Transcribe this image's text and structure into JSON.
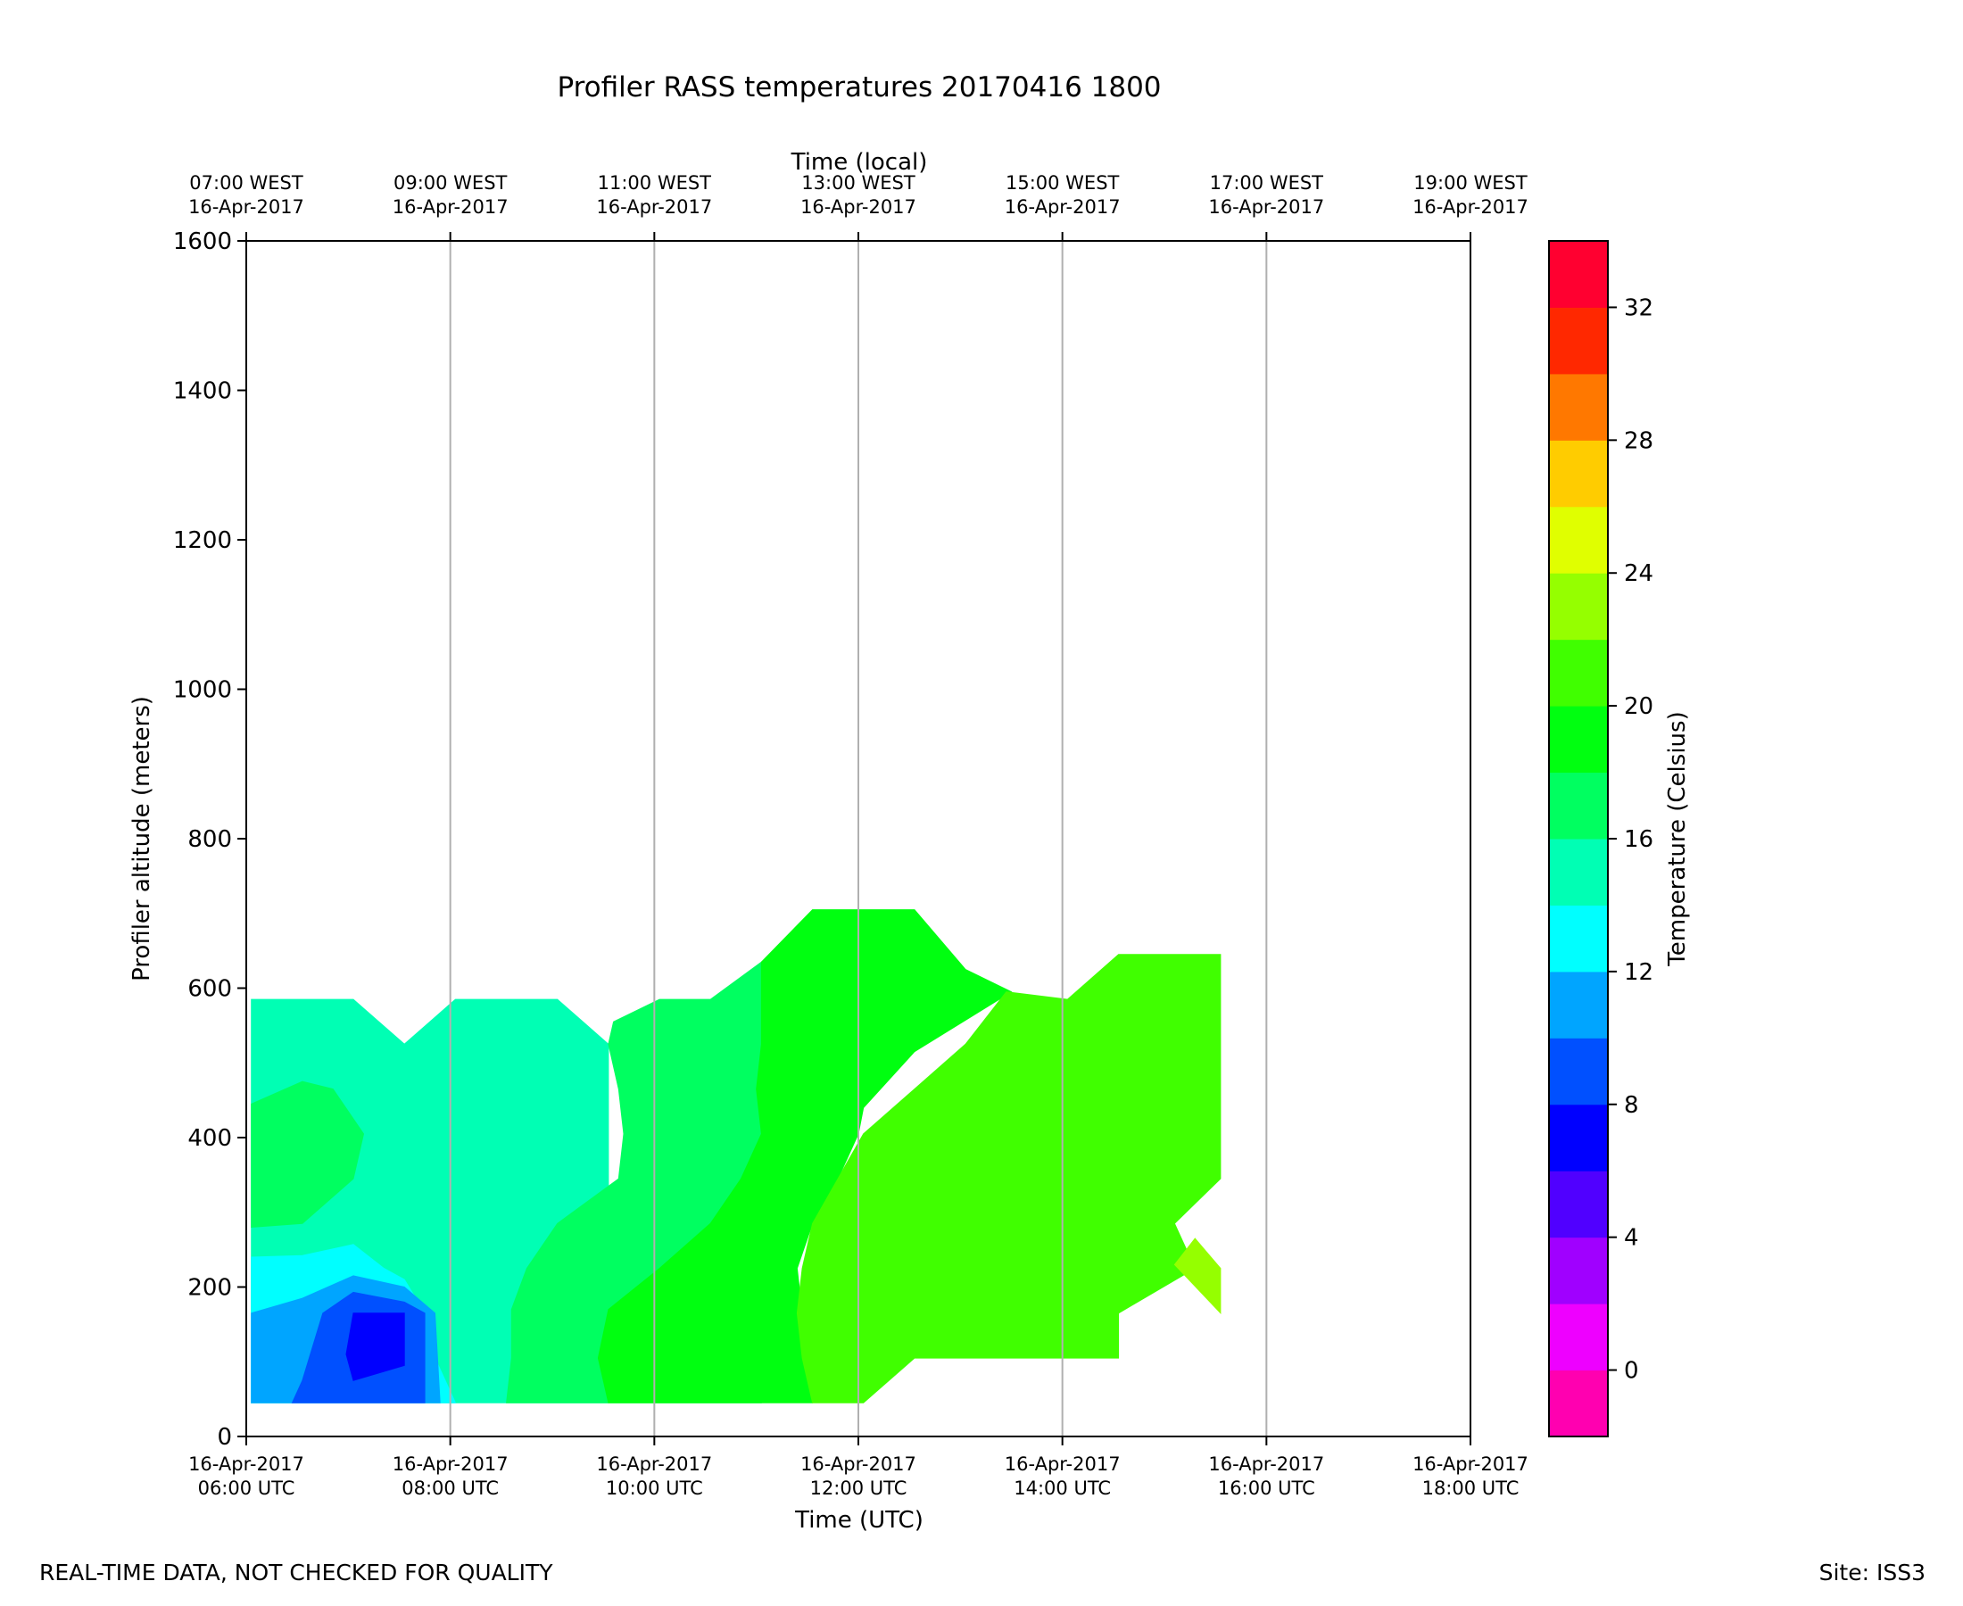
{
  "chart_data": {
    "type": "heatmap",
    "title": "Profiler RASS temperatures 20170416 1800",
    "top_axis_label": "Time (local)",
    "xlabel": "Time (UTC)",
    "ylabel": "Profiler altitude (meters)",
    "colorbar_label": "Temperature (Celsius)",
    "x_unit": "hours UTC, 16-Apr-2017",
    "xlim": [
      6,
      18
    ],
    "ylim": [
      0,
      1600
    ],
    "x_ticks": [
      6,
      8,
      10,
      12,
      14,
      16,
      18
    ],
    "x_tick_labels_bottom": [
      [
        "16-Apr-2017",
        "06:00 UTC"
      ],
      [
        "16-Apr-2017",
        "08:00 UTC"
      ],
      [
        "16-Apr-2017",
        "10:00 UTC"
      ],
      [
        "16-Apr-2017",
        "12:00 UTC"
      ],
      [
        "16-Apr-2017",
        "14:00 UTC"
      ],
      [
        "16-Apr-2017",
        "16:00 UTC"
      ],
      [
        "16-Apr-2017",
        "18:00 UTC"
      ]
    ],
    "x_tick_labels_top": [
      [
        "07:00 WEST",
        "16-Apr-2017"
      ],
      [
        "09:00 WEST",
        "16-Apr-2017"
      ],
      [
        "11:00 WEST",
        "16-Apr-2017"
      ],
      [
        "13:00 WEST",
        "16-Apr-2017"
      ],
      [
        "15:00 WEST",
        "16-Apr-2017"
      ],
      [
        "17:00 WEST",
        "16-Apr-2017"
      ],
      [
        "19:00 WEST",
        "16-Apr-2017"
      ]
    ],
    "y_ticks": [
      0,
      200,
      400,
      600,
      800,
      1000,
      1200,
      1400,
      1600
    ],
    "vertical_grid": true,
    "colorbar": {
      "min": -2,
      "max": 34,
      "step": 2,
      "ticks": [
        0,
        4,
        8,
        12,
        16,
        20,
        24,
        28,
        32
      ],
      "colors": [
        "#ff00b0",
        "#ee00ff",
        "#a000ff",
        "#5000ff",
        "#0000ff",
        "#0050ff",
        "#00a5ff",
        "#00ffff",
        "#00ffb4",
        "#00ff60",
        "#00ff10",
        "#40ff00",
        "#95ff00",
        "#e0ff00",
        "#ffcc00",
        "#ff7800",
        "#ff2800",
        "#ff0030"
      ]
    },
    "contour_regions": [
      {
        "band": "14-16",
        "points": [
          [
            6.05,
            45
          ],
          [
            6.05,
            585
          ],
          [
            7.05,
            585
          ],
          [
            7.55,
            525
          ],
          [
            8.05,
            585
          ],
          [
            9.05,
            585
          ],
          [
            9.55,
            525
          ],
          [
            9.55,
            45
          ]
        ]
      },
      {
        "band": "16-18",
        "points": [
          [
            6.05,
            280
          ],
          [
            6.05,
            445
          ],
          [
            6.55,
            475
          ],
          [
            6.85,
            465
          ],
          [
            7.15,
            405
          ],
          [
            7.05,
            345
          ],
          [
            6.55,
            285
          ]
        ]
      },
      {
        "band": "16-18",
        "points": [
          [
            8.55,
            45
          ],
          [
            8.6,
            105
          ],
          [
            8.6,
            170
          ],
          [
            8.75,
            225
          ],
          [
            9.05,
            285
          ],
          [
            9.65,
            345
          ],
          [
            9.7,
            405
          ],
          [
            9.65,
            465
          ],
          [
            9.55,
            525
          ],
          [
            9.6,
            555
          ],
          [
            10.05,
            585
          ],
          [
            10.55,
            585
          ],
          [
            11.05,
            635
          ],
          [
            11.05,
            45
          ]
        ]
      },
      {
        "band": "12-14",
        "points": [
          [
            6.05,
            45
          ],
          [
            6.05,
            240
          ],
          [
            6.55,
            242
          ],
          [
            7.05,
            257
          ],
          [
            7.35,
            225
          ],
          [
            7.55,
            210
          ],
          [
            7.75,
            165
          ],
          [
            7.85,
            105
          ],
          [
            8.05,
            45
          ]
        ]
      },
      {
        "band": "10-12",
        "points": [
          [
            6.05,
            45
          ],
          [
            6.05,
            165
          ],
          [
            6.55,
            185
          ],
          [
            7.05,
            215
          ],
          [
            7.55,
            200
          ],
          [
            7.85,
            165
          ],
          [
            7.9,
            45
          ]
        ]
      },
      {
        "band": "8-10",
        "points": [
          [
            6.45,
            45
          ],
          [
            6.55,
            75
          ],
          [
            6.75,
            165
          ],
          [
            7.05,
            193
          ],
          [
            7.55,
            180
          ],
          [
            7.75,
            165
          ],
          [
            7.75,
            45
          ]
        ]
      },
      {
        "band": "6-8",
        "points": [
          [
            7.05,
            165
          ],
          [
            7.55,
            165
          ],
          [
            7.55,
            105
          ],
          [
            7.55,
            95
          ],
          [
            7.05,
            75
          ],
          [
            6.98,
            110
          ]
        ]
      },
      {
        "band": "18-20",
        "points": [
          [
            9.55,
            45
          ],
          [
            9.45,
            105
          ],
          [
            9.55,
            170
          ],
          [
            10.05,
            225
          ],
          [
            10.55,
            285
          ],
          [
            10.85,
            345
          ],
          [
            11.05,
            405
          ],
          [
            11.0,
            465
          ],
          [
            11.05,
            525
          ],
          [
            11.05,
            635
          ],
          [
            11.55,
            705
          ],
          [
            12.55,
            705
          ],
          [
            13.05,
            625
          ],
          [
            13.5,
            595
          ],
          [
            12.55,
            515
          ],
          [
            12.05,
            440
          ],
          [
            12.0,
            405
          ],
          [
            11.8,
            345
          ],
          [
            11.55,
            285
          ],
          [
            11.4,
            225
          ],
          [
            11.45,
            165
          ],
          [
            11.6,
            105
          ],
          [
            11.55,
            45
          ]
        ]
      },
      {
        "band": "20-22",
        "points": [
          [
            11.55,
            45
          ],
          [
            11.45,
            105
          ],
          [
            11.4,
            165
          ],
          [
            11.45,
            225
          ],
          [
            11.55,
            285
          ],
          [
            11.8,
            345
          ],
          [
            12.05,
            405
          ],
          [
            12.55,
            465
          ],
          [
            13.05,
            525
          ],
          [
            13.45,
            595
          ],
          [
            14.05,
            585
          ],
          [
            14.55,
            645
          ],
          [
            15.55,
            645
          ],
          [
            15.55,
            345
          ],
          [
            15.1,
            285
          ],
          [
            15.3,
            225
          ],
          [
            14.55,
            165
          ],
          [
            14.55,
            105
          ],
          [
            12.55,
            105
          ],
          [
            12.05,
            45
          ]
        ]
      },
      {
        "band": "22-24",
        "points": [
          [
            15.1,
            230
          ],
          [
            15.3,
            265
          ],
          [
            15.55,
            225
          ],
          [
            15.55,
            165
          ]
        ]
      }
    ]
  },
  "footer": {
    "left": "REAL-TIME DATA, NOT CHECKED FOR QUALITY",
    "right": "Site: ISS3"
  }
}
